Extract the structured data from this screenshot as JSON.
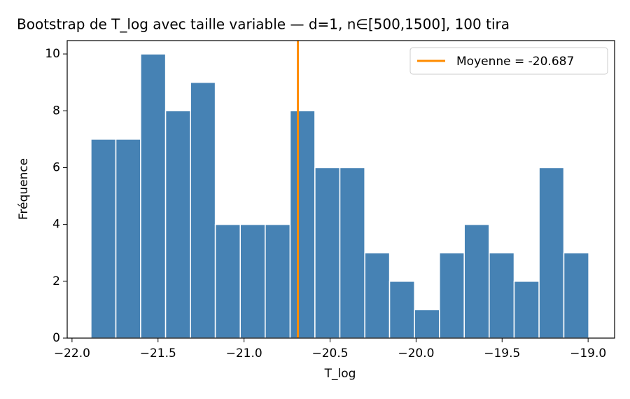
{
  "chart_data": {
    "type": "histogram",
    "title": "Bootstrap de T_log avec taille variable — d=1, n∈[500,1500], 100 tira",
    "xlabel": "T_log",
    "ylabel": "Fréquence",
    "bins": [
      -21.89,
      -21.745,
      -21.601,
      -21.456,
      -21.311,
      -21.167,
      -21.022,
      -20.877,
      -20.732,
      -20.588,
      -20.443,
      -20.298,
      -20.154,
      -20.009,
      -19.864,
      -19.72,
      -19.575,
      -19.43,
      -19.285,
      -19.141,
      -18.996
    ],
    "values": [
      7,
      7,
      10,
      8,
      9,
      4,
      4,
      4,
      8,
      6,
      6,
      3,
      2,
      1,
      3,
      4,
      3,
      2,
      6,
      3
    ],
    "color": "#4682b4",
    "mean_line": {
      "name": "Moyenne = -20.687",
      "value": -20.687,
      "color": "#ff8c00"
    },
    "legend_position": "upper right",
    "xlim": [
      -22.028,
      -18.846
    ],
    "ylim": [
      0,
      10.47
    ],
    "xticks": [
      {
        "value": -22.0,
        "label": "−22.0"
      },
      {
        "value": -21.5,
        "label": "−21.5"
      },
      {
        "value": -21.0,
        "label": "−21.0"
      },
      {
        "value": -20.5,
        "label": "−20.5"
      },
      {
        "value": -20.0,
        "label": "−20.0"
      },
      {
        "value": -19.5,
        "label": "−19.5"
      },
      {
        "value": -19.0,
        "label": "−19.0"
      }
    ],
    "yticks": [
      0,
      2,
      4,
      6,
      8,
      10
    ]
  }
}
